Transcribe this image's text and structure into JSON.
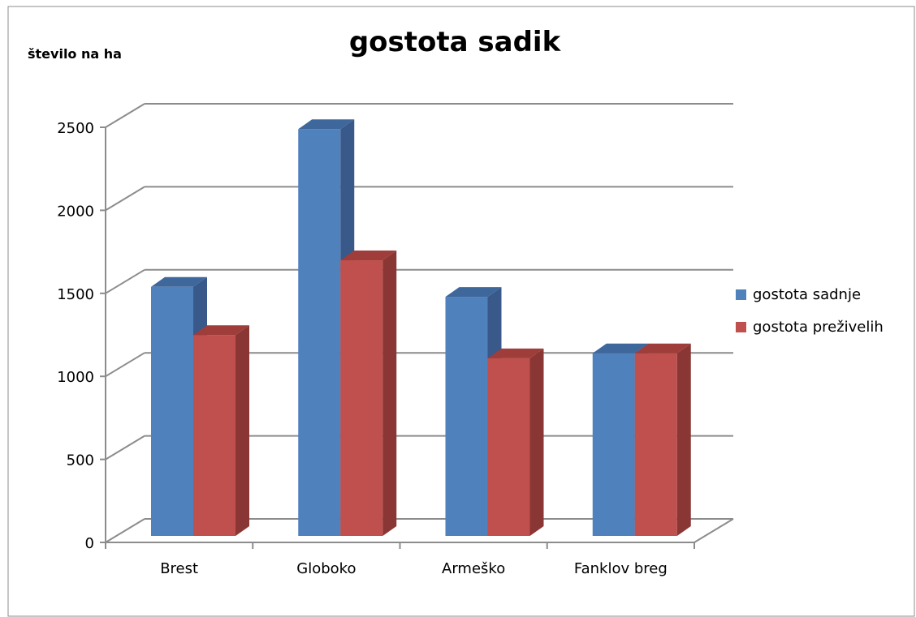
{
  "chart_data": {
    "type": "bar",
    "title": "gostota sadik",
    "ylabel": "število na ha",
    "xlabel": "",
    "categories": [
      "Brest",
      "Globoko",
      "Armeško",
      "Fanklov breg"
    ],
    "series": [
      {
        "name": "gostota sadnje",
        "values": [
          1500,
          2450,
          1440,
          1100
        ],
        "color": "#4F81BD",
        "side_color": "#38598A",
        "top_color": "#3E679C"
      },
      {
        "name": "gostota preživelih",
        "values": [
          1210,
          1660,
          1070,
          1100
        ],
        "color": "#C0504D",
        "side_color": "#8A3634",
        "top_color": "#9E3D3A"
      }
    ],
    "y_ticks": [
      "0",
      "500",
      "1000",
      "1500",
      "2000",
      "2500"
    ],
    "ylim": [
      0,
      2500
    ],
    "grid": true,
    "legend_position": "right",
    "style": "3d-clustered-column"
  }
}
